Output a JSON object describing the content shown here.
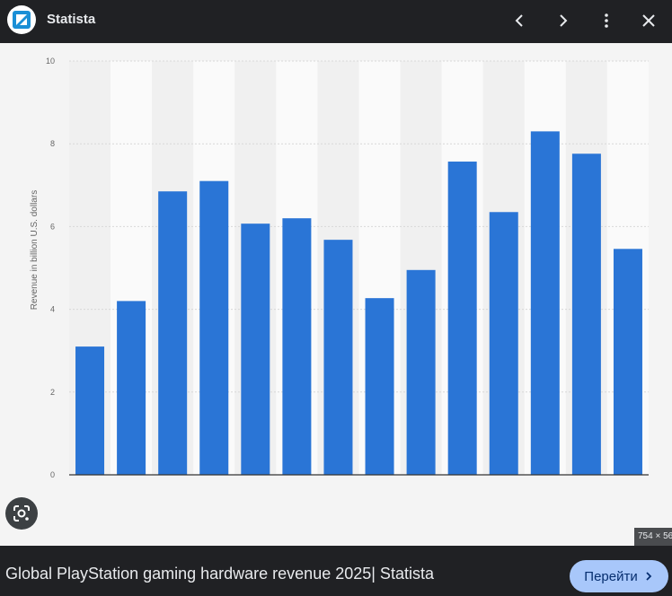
{
  "header": {
    "site_name": "Statista",
    "icons": [
      "statista-logo-icon",
      "chevron-left-icon",
      "chevron-right-icon",
      "more-vert-icon",
      "close-icon"
    ]
  },
  "chart_data": {
    "type": "bar",
    "title": "",
    "xlabel": "",
    "ylabel": "Revenue in billion U.S. dollars",
    "ylim": [
      0,
      10
    ],
    "yticks": [
      "0",
      "2",
      "4",
      "6",
      "8",
      "10"
    ],
    "categories": [
      "",
      "",
      "",
      "",
      "",
      "",
      "",
      "",
      "",
      "",
      "",
      "",
      "",
      ""
    ],
    "values": [
      3.1,
      4.2,
      6.85,
      7.1,
      6.07,
      6.2,
      5.68,
      4.27,
      4.95,
      7.57,
      6.35,
      8.3,
      7.76,
      5.46
    ],
    "colors": {
      "bar": "#2a75d6",
      "grid": "#d8d8d8",
      "axis": "#333333",
      "band_light": "#fafafa",
      "band_dark": "#f0f0f0"
    }
  },
  "image_dimensions": "754 × 56",
  "footer": {
    "title": "Global PlayStation gaming hardware revenue 2025| Statista",
    "visit_button": "Перейти"
  }
}
